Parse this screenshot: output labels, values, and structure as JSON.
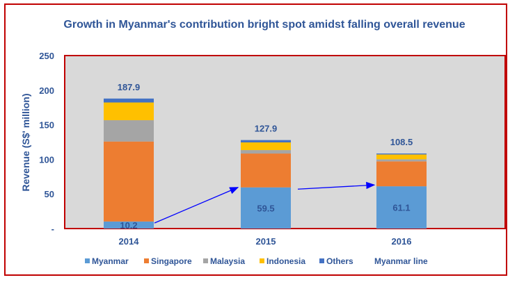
{
  "chart_data": {
    "type": "bar",
    "stacked": true,
    "title": "Growth in Myanmar's contribution bright spot amidst falling overall revenue",
    "xlabel": "",
    "ylabel": "Revenue (S$' million)",
    "ylim": [
      0,
      250
    ],
    "yticks": [
      "-",
      "50",
      "100",
      "150",
      "200",
      "250"
    ],
    "grid": false,
    "legend_position": "bottom",
    "categories": [
      "2014",
      "2015",
      "2016"
    ],
    "series": [
      {
        "name": "Myanmar",
        "color": "#5B9BD5",
        "values": [
          10.2,
          59.5,
          61.1
        ],
        "labels": [
          "10.2",
          "59.5",
          "61.1"
        ]
      },
      {
        "name": "Singapore",
        "color": "#ED7D31",
        "values": [
          115.6,
          48.9,
          36.0
        ]
      },
      {
        "name": "Malaysia",
        "color": "#A5A5A5",
        "values": [
          30.8,
          5.0,
          3.0
        ]
      },
      {
        "name": "Indonesia",
        "color": "#FFC000",
        "values": [
          25.6,
          11.1,
          7.0
        ]
      },
      {
        "name": "Others",
        "color": "#4472C4",
        "values": [
          5.7,
          3.4,
          1.4
        ]
      }
    ],
    "totals": [
      "187.9",
      "127.9",
      "108.5"
    ],
    "line_series": {
      "name": "Myanmar line",
      "color": "#0000FF",
      "style": "arrows"
    },
    "colors": {
      "plot_background": "#D9D9D9",
      "border": "#C00000",
      "text": "#2F5597"
    }
  }
}
